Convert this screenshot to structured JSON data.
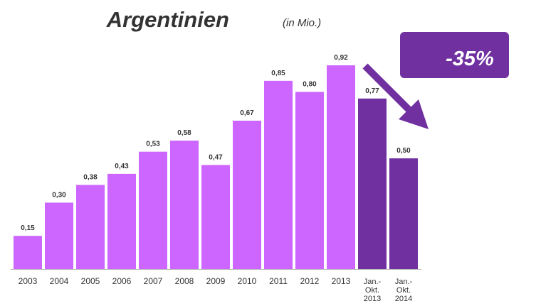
{
  "chart_data": {
    "type": "bar",
    "title": "Argentinien",
    "subtitle": "(in Mio.)",
    "categories": [
      "2003",
      "2004",
      "2005",
      "2006",
      "2007",
      "2008",
      "2009",
      "2010",
      "2011",
      "2012",
      "2013",
      "Jan.- Okt. 2013",
      "Jan.- Okt. 2014"
    ],
    "values": [
      0.15,
      0.3,
      0.38,
      0.43,
      0.53,
      0.58,
      0.47,
      0.67,
      0.85,
      0.8,
      0.92,
      0.77,
      0.5
    ],
    "value_labels": [
      "0,15",
      "0,30",
      "0,38",
      "0,43",
      "0,53",
      "0,58",
      "0,47",
      "0,67",
      "0,85",
      "0,80",
      "0,92",
      "0,77",
      "0,50"
    ],
    "colors": [
      "#cc66ff",
      "#cc66ff",
      "#cc66ff",
      "#cc66ff",
      "#cc66ff",
      "#cc66ff",
      "#cc66ff",
      "#cc66ff",
      "#cc66ff",
      "#cc66ff",
      "#cc66ff",
      "#7030a0",
      "#7030a0"
    ],
    "annotation": "-35%"
  }
}
